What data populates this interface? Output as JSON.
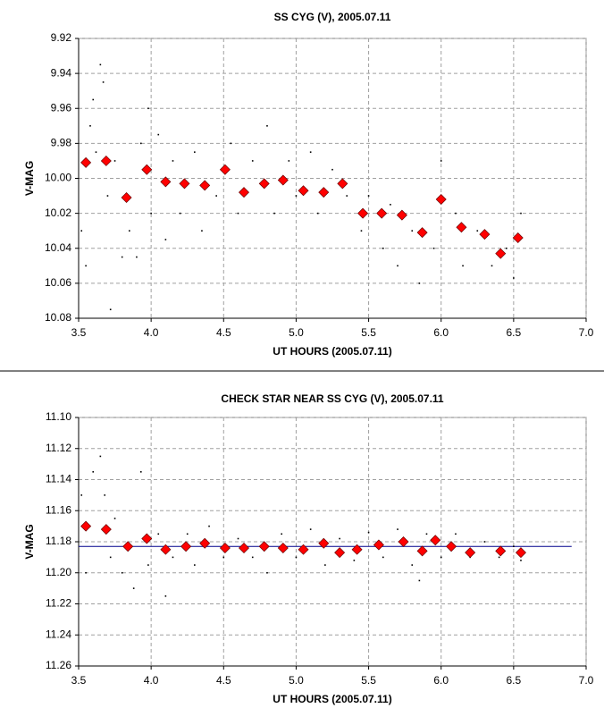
{
  "chart_data": [
    {
      "type": "scatter",
      "title": "SS CYG (V), 2005.07.11",
      "x_label": "UT HOURS (2005.07.11)",
      "y_label": "V-MAG",
      "xlim": [
        3.5,
        7.0
      ],
      "xticks": [
        3.5,
        {
          "value": 4,
          "label": "4.0"
        },
        4.5,
        {
          "value": 5,
          "label": "5.0"
        },
        5.5,
        {
          "value": 6,
          "label": "6.0"
        },
        6.5,
        {
          "value": 7,
          "label": "7.0"
        }
      ],
      "ylim": [
        9.92,
        10.08
      ],
      "y_inverted": true,
      "yticks": [
        9.92,
        9.94,
        9.96,
        9.98,
        {
          "value": 10,
          "label": "10.00"
        },
        10.02,
        10.04,
        10.06,
        10.08
      ],
      "grid": true,
      "series": [
        {
          "marker": "dot",
          "color": "#000000",
          "x": [
            3.52,
            3.55,
            3.58,
            3.6,
            3.62,
            3.65,
            3.67,
            3.7,
            3.72,
            3.75,
            3.8,
            3.85,
            3.9,
            3.93,
            3.98,
            4.0,
            4.05,
            4.1,
            4.15,
            4.2,
            4.3,
            4.35,
            4.45,
            4.55,
            4.6,
            4.7,
            4.8,
            4.85,
            4.95,
            5.0,
            5.1,
            5.15,
            5.25,
            5.35,
            5.45,
            5.5,
            5.6,
            5.65,
            5.7,
            5.8,
            5.85,
            5.95,
            6.0,
            6.1,
            6.15,
            6.25,
            6.35,
            6.45,
            6.5,
            6.55
          ],
          "values": [
            10.03,
            10.05,
            9.97,
            9.955,
            9.985,
            9.935,
            9.945,
            10.01,
            10.075,
            9.99,
            10.045,
            10.03,
            10.045,
            9.98,
            9.96,
            10.02,
            9.975,
            10.035,
            9.99,
            10.02,
            9.985,
            10.03,
            10.01,
            9.98,
            10.02,
            9.99,
            9.97,
            10.02,
            9.99,
            10.01,
            9.985,
            10.02,
            9.995,
            10.01,
            10.03,
            10.01,
            10.04,
            10.015,
            10.05,
            10.03,
            10.06,
            10.04,
            9.99,
            10.02,
            10.05,
            10.03,
            10.05,
            10.04,
            10.057,
            10.02
          ]
        },
        {
          "marker": "diamond",
          "color": "#ff0000",
          "x": [
            3.55,
            3.69,
            3.83,
            3.97,
            4.1,
            4.23,
            4.37,
            4.51,
            4.64,
            4.78,
            4.91,
            5.05,
            5.19,
            5.32,
            5.46,
            5.59,
            5.73,
            5.87,
            6.0,
            6.14,
            6.3,
            6.41,
            6.53
          ],
          "values": [
            9.991,
            9.99,
            10.011,
            9.995,
            10.002,
            10.003,
            10.004,
            9.995,
            10.008,
            10.003,
            10.001,
            10.007,
            10.008,
            10.003,
            10.02,
            10.02,
            10.021,
            10.031,
            10.012,
            10.028,
            10.032,
            10.043,
            10.034
          ]
        }
      ]
    },
    {
      "type": "scatter",
      "title": "CHECK STAR NEAR SS CYG (V), 2005.07.11",
      "x_label": "UT HOURS (2005.07.11)",
      "y_label": "V-MAG",
      "xlim": [
        3.5,
        7.0
      ],
      "xticks": [
        3.5,
        {
          "value": 4,
          "label": "4.0"
        },
        4.5,
        {
          "value": 5,
          "label": "5.0"
        },
        5.5,
        {
          "value": 6,
          "label": "6.0"
        },
        6.5,
        {
          "value": 7,
          "label": "7.0"
        }
      ],
      "ylim": [
        11.1,
        11.26
      ],
      "y_inverted": true,
      "yticks": [
        {
          "value": 11.1,
          "label": "11.10"
        },
        11.12,
        11.14,
        11.16,
        11.18,
        {
          "value": 11.2,
          "label": "11.20"
        },
        11.22,
        11.24,
        11.26
      ],
      "grid": true,
      "hline": 11.183,
      "hline_x": [
        3.5,
        6.9
      ],
      "hline_color": "#00008b",
      "series": [
        {
          "marker": "dot",
          "color": "#000000",
          "x": [
            3.52,
            3.55,
            3.6,
            3.65,
            3.68,
            3.72,
            3.75,
            3.8,
            3.88,
            3.93,
            3.98,
            4.05,
            4.1,
            4.15,
            4.25,
            4.3,
            4.4,
            4.5,
            4.6,
            4.7,
            4.8,
            4.9,
            5.0,
            5.1,
            5.2,
            5.3,
            5.4,
            5.5,
            5.6,
            5.7,
            5.8,
            5.85,
            5.9,
            6.0,
            6.1,
            6.2,
            6.3,
            6.4,
            6.5,
            6.55
          ],
          "values": [
            11.15,
            11.2,
            11.135,
            11.125,
            11.15,
            11.19,
            11.165,
            11.2,
            11.21,
            11.135,
            11.195,
            11.175,
            11.215,
            11.19,
            11.175,
            11.195,
            11.17,
            11.19,
            11.178,
            11.19,
            11.2,
            11.175,
            11.19,
            11.172,
            11.195,
            11.178,
            11.192,
            11.174,
            11.19,
            11.172,
            11.195,
            11.205,
            11.175,
            11.19,
            11.175,
            11.19,
            11.18,
            11.19,
            11.183,
            11.192
          ]
        },
        {
          "marker": "diamond",
          "color": "#ff0000",
          "x": [
            3.55,
            3.69,
            3.84,
            3.97,
            4.1,
            4.24,
            4.37,
            4.51,
            4.64,
            4.78,
            4.91,
            5.05,
            5.19,
            5.3,
            5.42,
            5.57,
            5.74,
            5.87,
            5.96,
            6.07,
            6.2,
            6.41,
            6.55
          ],
          "values": [
            11.17,
            11.172,
            11.183,
            11.178,
            11.185,
            11.183,
            11.181,
            11.184,
            11.184,
            11.183,
            11.184,
            11.185,
            11.181,
            11.187,
            11.185,
            11.182,
            11.18,
            11.186,
            11.179,
            11.183,
            11.187,
            11.186,
            11.187
          ]
        }
      ]
    }
  ]
}
